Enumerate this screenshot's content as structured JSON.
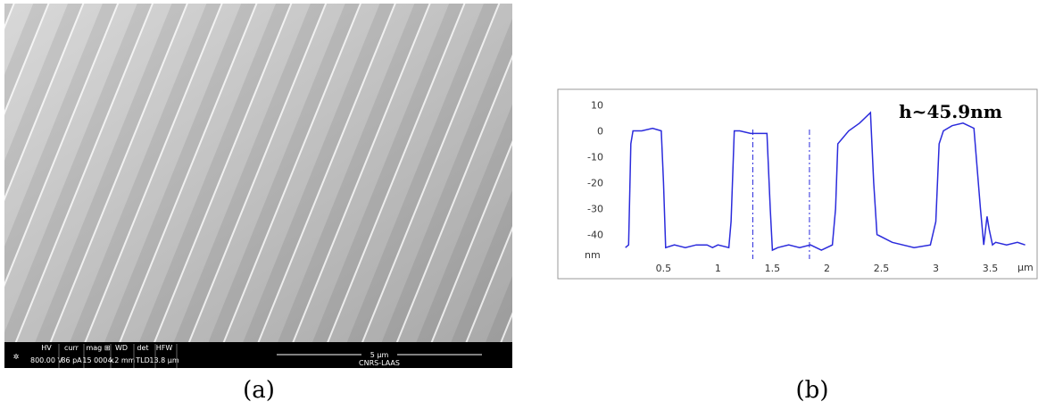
{
  "panel_a": {
    "caption": "(a)",
    "info_bar": {
      "fields": [
        {
          "label": "HV",
          "value": "800.00 V"
        },
        {
          "label": "curr",
          "value": "86 pA"
        },
        {
          "label": "mag ⊞",
          "value": "15 000 x"
        },
        {
          "label": "WD",
          "value": "4.2 mm"
        },
        {
          "label": "det",
          "value": "TLD"
        },
        {
          "label": "HFW",
          "value": "13.8 µm"
        }
      ],
      "scale_bar": "5 µm",
      "institution": "CNRS-LAAS"
    }
  },
  "panel_b": {
    "caption": "(b)"
  },
  "chart_data": {
    "type": "line",
    "annotation": "h~45.9nm",
    "x_label": "µm",
    "y_label": "nm",
    "x": [
      0.15,
      0.18,
      0.2,
      0.22,
      0.3,
      0.4,
      0.48,
      0.5,
      0.52,
      0.6,
      0.7,
      0.8,
      0.9,
      0.95,
      1.0,
      1.1,
      1.12,
      1.15,
      1.2,
      1.3,
      1.45,
      1.48,
      1.5,
      1.55,
      1.65,
      1.75,
      1.85,
      1.95,
      2.05,
      2.08,
      2.1,
      2.2,
      2.3,
      2.4,
      2.43,
      2.46,
      2.6,
      2.8,
      2.95,
      3.0,
      3.03,
      3.07,
      3.15,
      3.25,
      3.35,
      3.41,
      3.44,
      3.47,
      3.49,
      3.52,
      3.55,
      3.65,
      3.75,
      3.82
    ],
    "series": [
      {
        "color": "#2b2bdc",
        "values": [
          -45,
          -44,
          -5,
          0,
          0,
          1,
          0,
          -20,
          -45,
          -44,
          -45,
          -44,
          -44,
          -45,
          -44,
          -45,
          -35,
          0,
          0,
          -1,
          -1,
          -30,
          -46,
          -45,
          -44,
          -45,
          -44,
          -46,
          -44,
          -30,
          -5,
          0,
          3,
          7,
          -20,
          -40,
          -43,
          -45,
          -44,
          -35,
          -5,
          0,
          2,
          3,
          1,
          -30,
          -44,
          -33,
          -38,
          -44,
          -43,
          -44,
          -43,
          -44
        ]
      }
    ],
    "cursors": [
      1.32,
      1.84
    ],
    "xlim": [
      -0.47,
      3.93
    ],
    "ylim": [
      -57,
      16
    ],
    "xticks": [
      0.5,
      1,
      1.5,
      2,
      2.5,
      3,
      3.5
    ],
    "yticks": [
      10,
      0,
      -10,
      -20,
      -30,
      -40
    ]
  }
}
